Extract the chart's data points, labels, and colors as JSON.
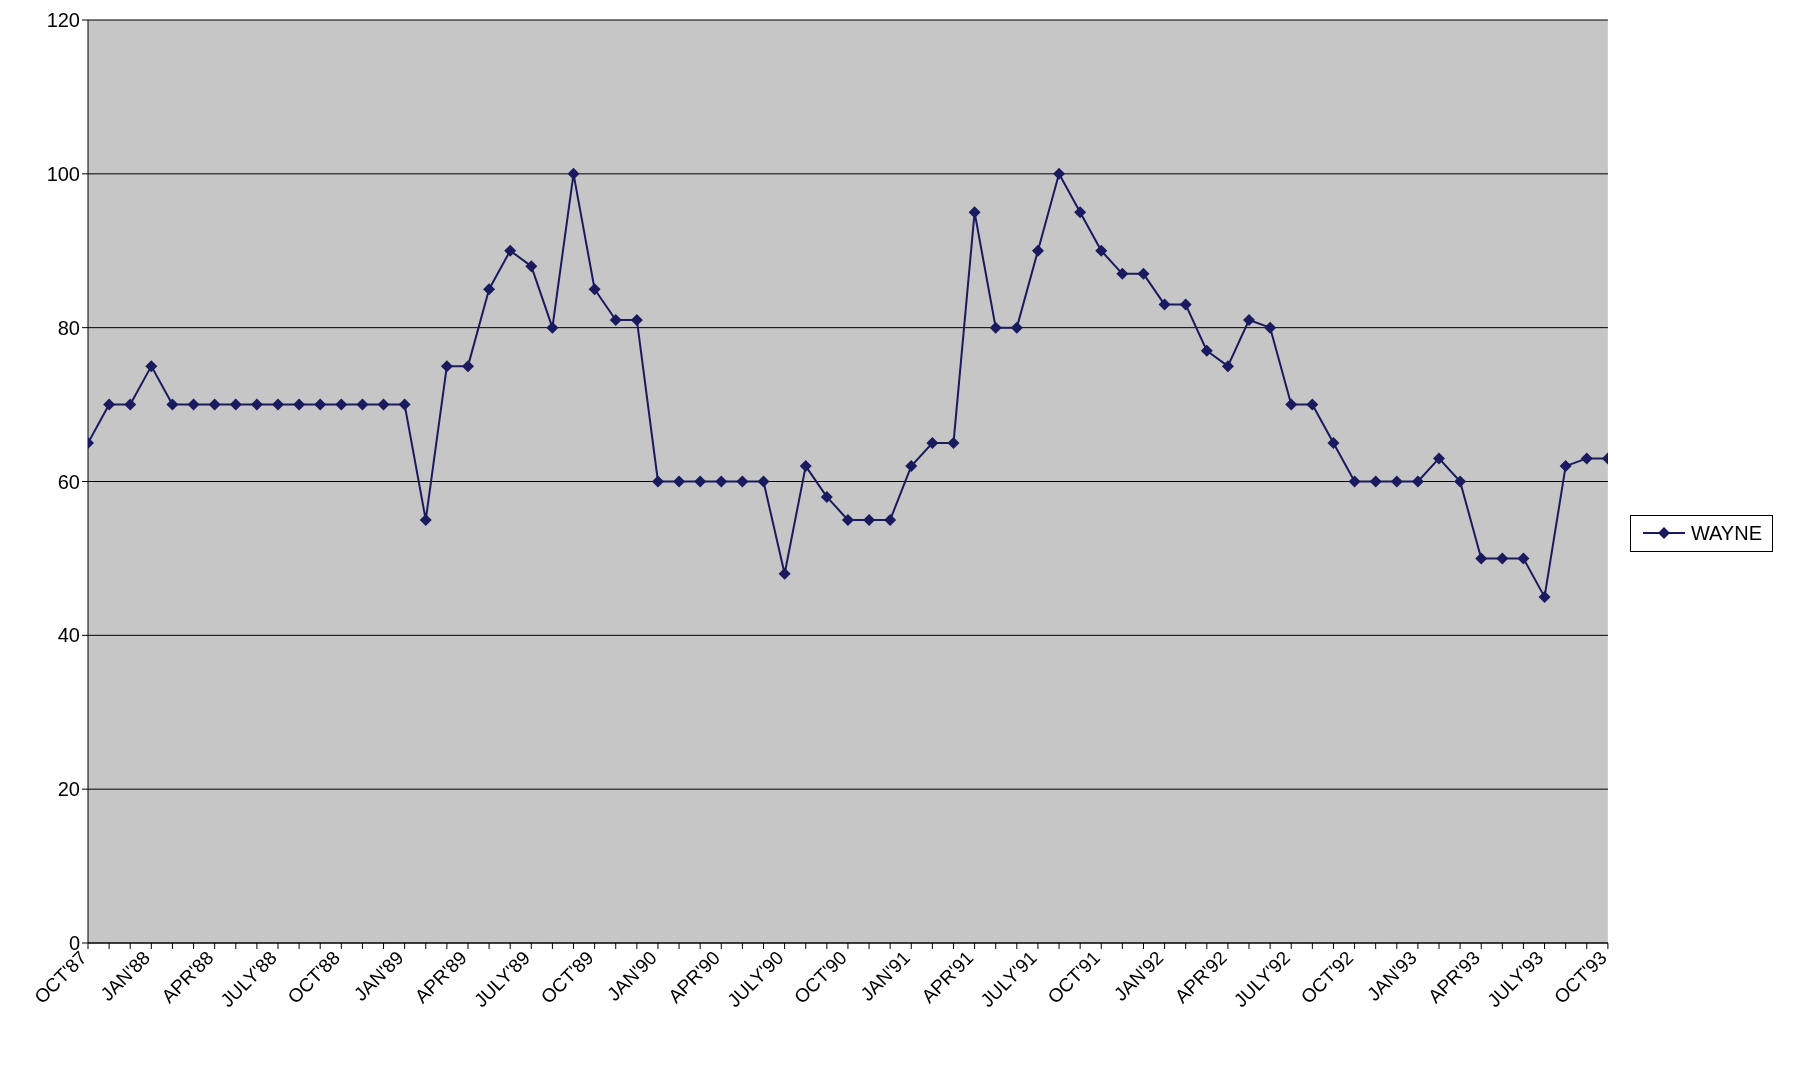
{
  "chart_data": {
    "type": "line",
    "categories": [
      "OCT'87",
      null,
      null,
      "JAN'88",
      null,
      null,
      "APR'88",
      null,
      null,
      "JULY'88",
      null,
      null,
      "OCT'88",
      null,
      null,
      "JAN'89",
      null,
      null,
      "APR'89",
      null,
      null,
      "JULY'89",
      null,
      null,
      "OCT'89",
      null,
      null,
      "JAN'90",
      null,
      null,
      "APR'90",
      null,
      null,
      "JULY'90",
      null,
      null,
      "OCT'90",
      null,
      null,
      "JAN'91",
      null,
      null,
      "APR'91",
      null,
      null,
      "JULY'91",
      null,
      null,
      "OCT'91",
      null,
      null,
      "JAN'92",
      null,
      null,
      "APR'92",
      null,
      null,
      "JULY'92",
      null,
      null,
      "OCT'92",
      null,
      null,
      "JAN'93",
      null,
      null,
      "APR'93",
      null,
      null,
      "JULY'93",
      null,
      null,
      "OCT'93"
    ],
    "series": [
      {
        "name": "WAYNE",
        "color": "#1a1a5e",
        "values": [
          65,
          70,
          70,
          75,
          70,
          70,
          70,
          70,
          70,
          70,
          70,
          70,
          70,
          70,
          70,
          70,
          55,
          75,
          75,
          85,
          90,
          88,
          80,
          100,
          85,
          81,
          81,
          60,
          60,
          60,
          60,
          60,
          60,
          48,
          62,
          58,
          55,
          55,
          55,
          62,
          65,
          65,
          95,
          80,
          80,
          90,
          100,
          95,
          90,
          87,
          87,
          83,
          83,
          77,
          75,
          81,
          80,
          70,
          70,
          65,
          60,
          60,
          60,
          60,
          63,
          60,
          50,
          50,
          50,
          45,
          62,
          63,
          63
        ]
      }
    ],
    "ylim": [
      0,
      120
    ],
    "yticks": [
      0,
      20,
      40,
      60,
      80,
      100,
      120
    ],
    "grid": "y",
    "legend": "right",
    "marker": "diamond",
    "line_style": "solid"
  }
}
